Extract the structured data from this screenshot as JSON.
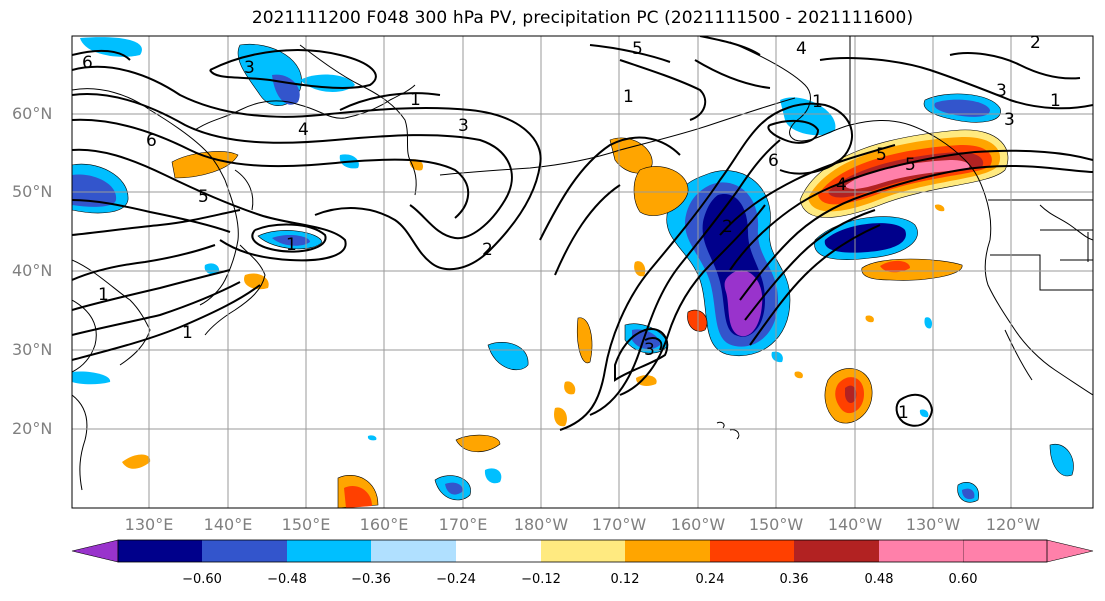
{
  "title": "2021111200 F048 300 hPa PV, precipitation PC (2021111500 - 2021111600)",
  "lat_labels": [
    "60°N",
    "50°N",
    "40°N",
    "30°N",
    "20°N"
  ],
  "lon_labels": [
    "130°E",
    "140°E",
    "150°E",
    "160°E",
    "170°E",
    "180°W",
    "170°W",
    "160°W",
    "150°W",
    "140°W",
    "130°W",
    "120°W"
  ],
  "colorbar": {
    "colors": [
      "#9933cc",
      "#00008b",
      "#3355cc",
      "#00bfff",
      "#b0e0ff",
      "#ffffff",
      "#ffea80",
      "#ffa500",
      "#ff4000",
      "#b22222",
      "#ff80aa"
    ],
    "tick_labels": [
      "−0.60",
      "−0.48",
      "−0.36",
      "−0.24",
      "−0.12",
      "0.12",
      "0.24",
      "0.36",
      "0.48",
      "0.60"
    ]
  },
  "contour_labels": [
    "6",
    "5",
    "4",
    "3",
    "1",
    "6",
    "5",
    "2",
    "1",
    "1",
    "1",
    "3",
    "2",
    "1",
    "1",
    "3",
    "4",
    "5",
    "1",
    "6",
    "2",
    "5",
    "4",
    "3",
    "3",
    "1"
  ]
}
